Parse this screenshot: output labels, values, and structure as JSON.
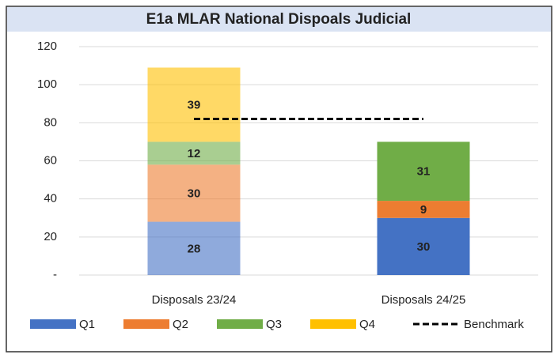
{
  "chart_data": {
    "type": "stacked_bar",
    "title": "E1a MLAR National Dispoals Judicial",
    "categories": [
      "Disposals 23/24",
      "Disposals 24/25"
    ],
    "series": [
      {
        "name": "Q1",
        "color": "#4472c4",
        "values": [
          28,
          30
        ]
      },
      {
        "name": "Q2",
        "color": "#ed7d31",
        "values": [
          30,
          9
        ]
      },
      {
        "name": "Q3",
        "color": "#70ad47",
        "values": [
          12,
          31
        ]
      },
      {
        "name": "Q4",
        "color": "#ffc000",
        "values": [
          39,
          null
        ]
      }
    ],
    "category_opacity": [
      0.6,
      1
    ],
    "benchmark": {
      "name": "Benchmark",
      "value": 82,
      "color": "#000000"
    },
    "ylim": [
      0,
      120
    ],
    "yticks": [
      {
        "value": 0,
        "label": "-"
      },
      20,
      40,
      60,
      80,
      100,
      120
    ],
    "grid": true,
    "legend": "bottom"
  }
}
